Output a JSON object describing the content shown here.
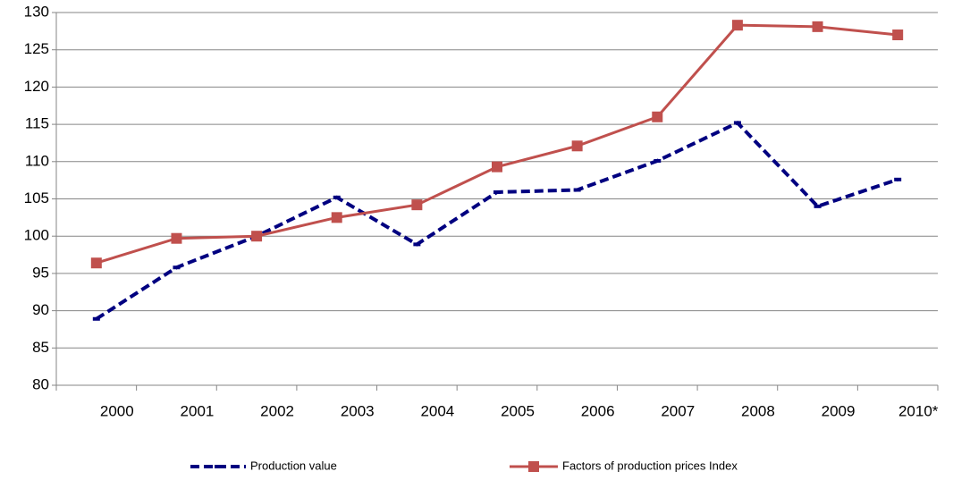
{
  "chart_data": {
    "type": "line",
    "categories": [
      "2000",
      "2001",
      "2002",
      "2003",
      "2004",
      "2005",
      "2006",
      "2007",
      "2008",
      "2009",
      "2010*"
    ],
    "series": [
      {
        "name": "Production value",
        "color": "#000080",
        "dash": true,
        "values": [
          88.9,
          95.8,
          100,
          105.2,
          98.9,
          105.9,
          106.2,
          110.1,
          115.2,
          104.0,
          107.6
        ]
      },
      {
        "name": "Factors of production prices Index",
        "color": "#c0504d",
        "dash": false,
        "values": [
          96.4,
          99.7,
          100,
          102.5,
          104.2,
          109.3,
          112.1,
          116.0,
          128.3,
          128.1,
          127.0
        ]
      }
    ],
    "ylim": [
      80,
      130
    ],
    "yticks": [
      80,
      85,
      90,
      95,
      100,
      105,
      110,
      115,
      120,
      125,
      130
    ],
    "grid": true,
    "legend": "bottom"
  }
}
